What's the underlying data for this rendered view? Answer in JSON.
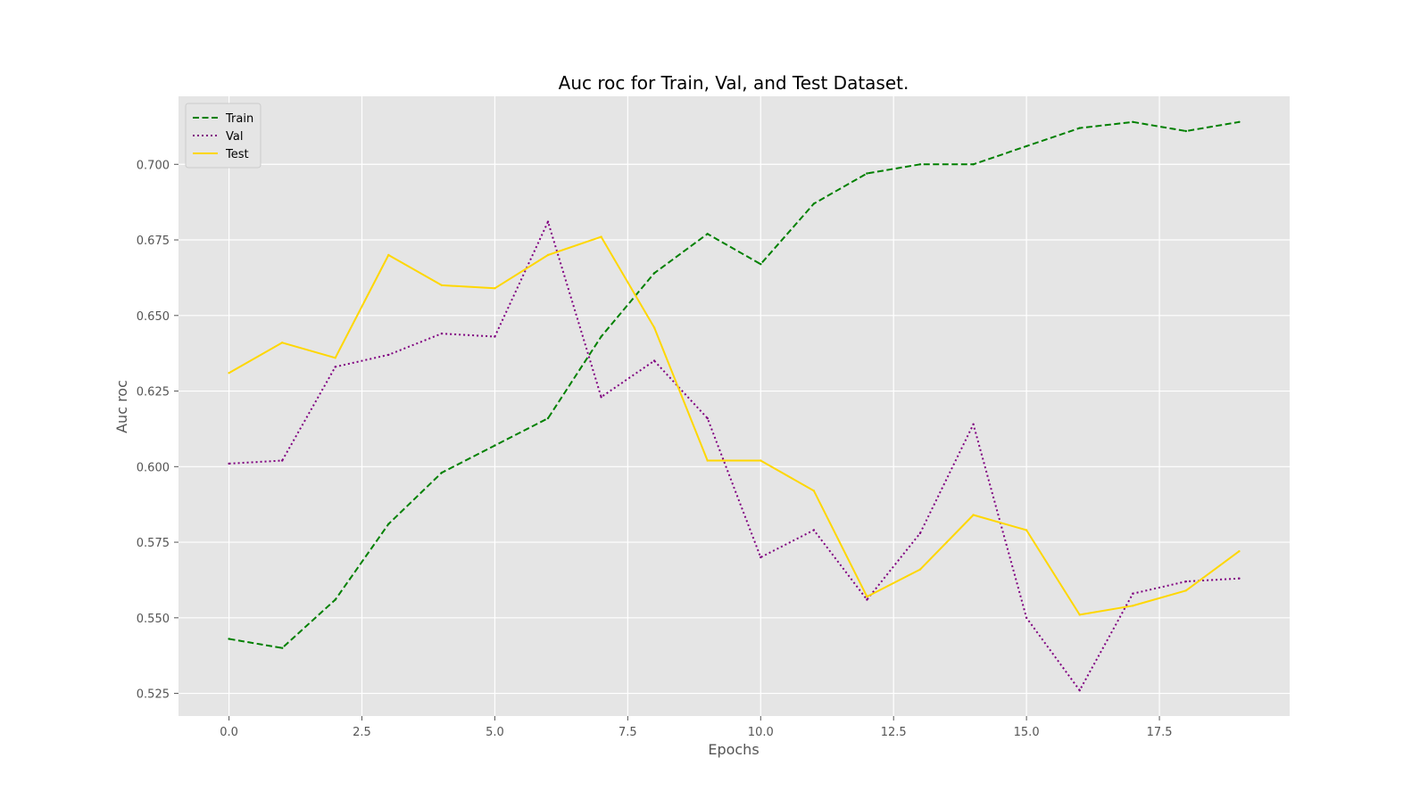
{
  "chart_data": {
    "type": "line",
    "title": "Auc roc for Train, Val, and Test Dataset.",
    "xlabel": "Epochs",
    "ylabel": "Auc roc",
    "xlim": [
      -0.95,
      19.95
    ],
    "ylim": [
      0.5175,
      0.7225
    ],
    "x_ticks": [
      0.0,
      2.5,
      5.0,
      7.5,
      10.0,
      12.5,
      15.0,
      17.5
    ],
    "x_tick_labels": [
      "0.0",
      "2.5",
      "5.0",
      "7.5",
      "10.0",
      "12.5",
      "15.0",
      "17.5"
    ],
    "y_ticks": [
      0.525,
      0.55,
      0.575,
      0.6,
      0.625,
      0.65,
      0.675,
      0.7
    ],
    "y_tick_labels": [
      "0.525",
      "0.550",
      "0.575",
      "0.600",
      "0.625",
      "0.650",
      "0.675",
      "0.700"
    ],
    "grid": true,
    "legend_position": "top-left",
    "x": [
      0,
      1,
      2,
      3,
      4,
      5,
      6,
      7,
      8,
      9,
      10,
      11,
      12,
      13,
      14,
      15,
      16,
      17,
      18,
      19
    ],
    "series": [
      {
        "name": "Train",
        "color": "#008000",
        "style": "dashed",
        "values": [
          0.543,
          0.54,
          0.556,
          0.581,
          0.598,
          0.607,
          0.616,
          0.643,
          0.664,
          0.677,
          0.667,
          0.687,
          0.697,
          0.7,
          0.7,
          0.706,
          0.712,
          0.714,
          0.711,
          0.714
        ]
      },
      {
        "name": "Val",
        "color": "#800080",
        "style": "dotted",
        "values": [
          0.601,
          0.602,
          0.633,
          0.637,
          0.644,
          0.643,
          0.681,
          0.623,
          0.635,
          0.616,
          0.57,
          0.579,
          0.556,
          0.578,
          0.614,
          0.55,
          0.526,
          0.558,
          0.562,
          0.563
        ]
      },
      {
        "name": "Test",
        "color": "#FFD700",
        "style": "solid",
        "values": [
          0.631,
          0.641,
          0.636,
          0.67,
          0.66,
          0.659,
          0.67,
          0.676,
          0.646,
          0.602,
          0.602,
          0.592,
          0.557,
          0.566,
          0.584,
          0.579,
          0.551,
          0.554,
          0.559,
          0.572
        ]
      }
    ]
  },
  "colors": {
    "plot_background": "#E5E5E5",
    "grid": "#FFFFFF"
  }
}
